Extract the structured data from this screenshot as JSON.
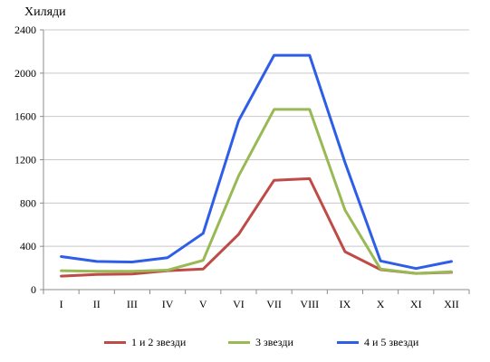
{
  "chart_data": {
    "type": "line",
    "title": "",
    "unit_label": "Хиляди",
    "xlabel": "",
    "ylabel": "",
    "categories": [
      "I",
      "II",
      "III",
      "IV",
      "V",
      "VI",
      "VII",
      "VIII",
      "IX",
      "X",
      "XI",
      "XII"
    ],
    "ylim": [
      0,
      2400
    ],
    "yticks": [
      0,
      400,
      800,
      1200,
      1600,
      2000,
      2400
    ],
    "grid": true,
    "legend_position": "bottom",
    "series": [
      {
        "name": "1 и 2 звезди",
        "color": "#be4b48",
        "values": [
          125,
          140,
          145,
          175,
          190,
          510,
          1010,
          1025,
          350,
          185,
          150,
          160
        ]
      },
      {
        "name": "3 звезди",
        "color": "#98b954",
        "values": [
          175,
          170,
          170,
          180,
          270,
          1050,
          1665,
          1665,
          735,
          190,
          150,
          165
        ]
      },
      {
        "name": "4 и 5 звезди",
        "color": "#2e5ee8",
        "values": [
          305,
          260,
          255,
          295,
          520,
          1560,
          2165,
          2165,
          1175,
          265,
          195,
          260
        ]
      }
    ]
  }
}
